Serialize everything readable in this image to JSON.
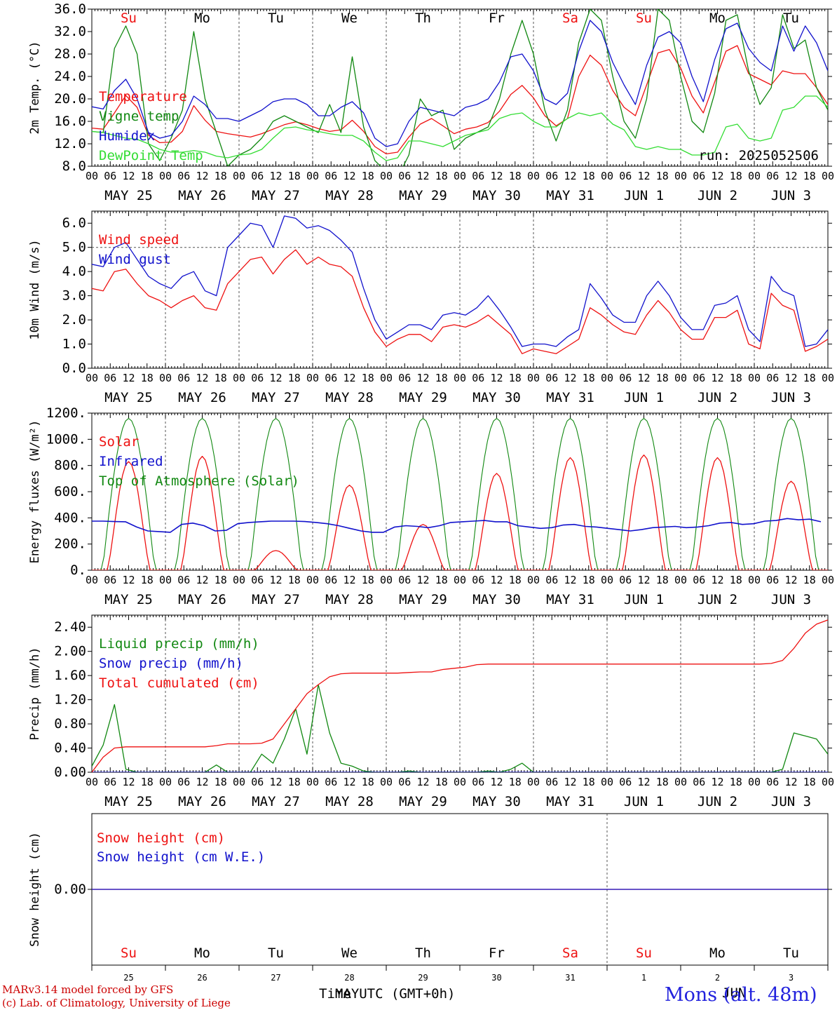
{
  "colors": {
    "red": "#ee1111",
    "green": "#118811",
    "blue": "#1111cc",
    "lime": "#33dd33",
    "grid": "#555555"
  },
  "days": {
    "weekday": [
      "Su",
      "Mo",
      "Tu",
      "We",
      "Th",
      "Fr",
      "Sa",
      "Su",
      "Mo",
      "Tu"
    ],
    "weekend_color": [
      "red",
      "black",
      "black",
      "black",
      "black",
      "black",
      "red",
      "red",
      "black",
      "black"
    ],
    "date_labels": [
      "MAY 25",
      "MAY 26",
      "MAY 27",
      "MAY 28",
      "MAY 29",
      "MAY 30",
      "MAY 31",
      "JUN  1",
      "JUN  2",
      "JUN  3"
    ],
    "bottom_numbers": [
      "25",
      "26",
      "27",
      "28",
      "29",
      "30",
      "31",
      "1",
      "2",
      "3"
    ],
    "hour_ticks": [
      "00",
      "06",
      "12",
      "18"
    ],
    "final_tick": "00"
  },
  "footer": {
    "model": "MARv3.14 model forced by GFS",
    "lab": "(c) Lab. of Climatology, University of Liege",
    "xlabel": "Time UTC (GMT+0h)",
    "overlap_month": "MAY",
    "overlap_month2": "JUN",
    "station": "Mons (alt. 48m)"
  },
  "chart_data": [
    {
      "type": "line",
      "ylabel": "2m Temp. (°C)",
      "ylim": [
        8,
        36
      ],
      "yticks": [
        "8.0",
        "12.0",
        "16.0",
        "20.0",
        "24.0",
        "28.0",
        "32.0",
        "36.0"
      ],
      "ytick_values": [
        8,
        12,
        16,
        20,
        24,
        28,
        32,
        36
      ],
      "annotation": "run: 2025052506",
      "hours_step": 6,
      "series": [
        {
          "name": "Temperature",
          "color": "red",
          "values": [
            14.8,
            14.6,
            17.5,
            20.6,
            18.5,
            13.5,
            12.2,
            12.3,
            14.2,
            18.8,
            16.2,
            14.2,
            13.8,
            13.5,
            13.2,
            13.8,
            14.6,
            15.4,
            15.9,
            15.4,
            14.7,
            14.2,
            14.5,
            16.2,
            14.2,
            11.5,
            10.2,
            10.5,
            13.2,
            15.5,
            16.5,
            15.2,
            13.8,
            14.6,
            15.0,
            15.8,
            17.8,
            20.8,
            22.4,
            20.2,
            17.0,
            15.2,
            16.5,
            24.0,
            27.8,
            26.0,
            21.5,
            18.5,
            17.0,
            22.5,
            28.2,
            28.8,
            25.5,
            20.5,
            17.5,
            23.0,
            28.5,
            29.5,
            24.5,
            23.5,
            22.5,
            25.0,
            24.5,
            24.5,
            22.0,
            19.0
          ]
        },
        {
          "name": "Vigne temp",
          "color": "green",
          "values": [
            14.2,
            14.0,
            29.0,
            33.0,
            28.0,
            12.0,
            9.0,
            13.0,
            18.0,
            32.0,
            20.0,
            14.0,
            8.0,
            10.0,
            11.0,
            13.0,
            16.0,
            17.0,
            16.0,
            15.0,
            14.0,
            19.0,
            14.0,
            27.5,
            15.0,
            9.0,
            7.0,
            6.0,
            10.0,
            20.0,
            17.0,
            18.0,
            11.0,
            13.0,
            14.0,
            15.0,
            20.0,
            28.0,
            34.0,
            28.0,
            18.0,
            12.5,
            18.0,
            30.0,
            36.0,
            34.0,
            24.0,
            16.0,
            13.0,
            20.0,
            36.0,
            34.0,
            24.0,
            16.0,
            14.0,
            21.0,
            34.0,
            35.0,
            25.0,
            19.0,
            22.0,
            35.0,
            29.0,
            30.5,
            22.0,
            18.0
          ]
        },
        {
          "name": "Humidex",
          "color": "blue",
          "values": [
            18.6,
            18.2,
            21.5,
            23.5,
            20.0,
            14.0,
            13.0,
            13.5,
            16.0,
            20.5,
            19.0,
            16.5,
            16.5,
            16.0,
            17.0,
            18.0,
            19.5,
            20.0,
            20.0,
            19.0,
            17.0,
            17.0,
            18.5,
            19.5,
            17.5,
            13.0,
            11.5,
            12.0,
            16.0,
            18.5,
            18.0,
            17.5,
            17.0,
            18.5,
            19.0,
            20.0,
            23.0,
            27.5,
            28.0,
            25.0,
            20.0,
            19.0,
            21.0,
            28.5,
            34.0,
            32.0,
            26.5,
            22.5,
            19.0,
            26.0,
            31.0,
            32.0,
            30.0,
            24.0,
            19.5,
            27.0,
            32.5,
            33.5,
            29.0,
            26.5,
            25.0,
            33.0,
            28.5,
            33.0,
            30.0,
            25.0
          ]
        },
        {
          "name": "DewPoint Temp",
          "color": "lime",
          "values": [
            14.2,
            14.0,
            13.5,
            13.0,
            12.8,
            12.0,
            11.0,
            10.5,
            10.5,
            10.8,
            10.5,
            9.8,
            9.5,
            10.0,
            10.2,
            11.0,
            13.0,
            14.8,
            15.0,
            14.5,
            14.2,
            13.8,
            13.5,
            13.5,
            12.5,
            10.5,
            9.0,
            9.5,
            12.5,
            12.5,
            12.0,
            11.5,
            12.5,
            13.5,
            14.0,
            14.5,
            16.5,
            17.2,
            17.5,
            16.0,
            15.0,
            15.0,
            16.5,
            17.5,
            17.0,
            17.5,
            15.5,
            14.5,
            11.5,
            11.0,
            11.5,
            11.0,
            11.0,
            10.0,
            10.0,
            10.5,
            15.0,
            15.5,
            13.0,
            12.5,
            13.0,
            18.0,
            18.5,
            20.5,
            20.5,
            18.5
          ]
        }
      ]
    },
    {
      "type": "line",
      "ylabel": "10m Wind (m/s)",
      "ylim": [
        0,
        6.5
      ],
      "yticks": [
        "0.0",
        "1.0",
        "2.0",
        "3.0",
        "4.0",
        "5.0",
        "6.0"
      ],
      "ytick_values": [
        0,
        1,
        2,
        3,
        4,
        5,
        6
      ],
      "reference_line": 5.0,
      "hours_step": 6,
      "series": [
        {
          "name": "Wind speed",
          "color": "red",
          "values": [
            3.3,
            3.2,
            4.0,
            4.1,
            3.5,
            3.0,
            2.8,
            2.5,
            2.8,
            3.0,
            2.5,
            2.4,
            3.5,
            4.0,
            4.5,
            4.6,
            3.9,
            4.5,
            4.9,
            4.3,
            4.6,
            4.3,
            4.2,
            3.8,
            2.5,
            1.5,
            0.9,
            1.2,
            1.4,
            1.4,
            1.1,
            1.7,
            1.8,
            1.7,
            1.9,
            2.2,
            1.8,
            1.4,
            0.6,
            0.8,
            0.7,
            0.6,
            0.9,
            1.2,
            2.5,
            2.2,
            1.8,
            1.5,
            1.4,
            2.2,
            2.8,
            2.3,
            1.6,
            1.2,
            1.2,
            2.1,
            2.1,
            2.4,
            1.0,
            0.8,
            3.1,
            2.6,
            2.4,
            0.7,
            0.9,
            1.2
          ]
        },
        {
          "name": "Wind gust",
          "color": "blue",
          "values": [
            4.3,
            4.2,
            5.0,
            5.2,
            4.5,
            3.8,
            3.5,
            3.3,
            3.8,
            4.0,
            3.2,
            3.0,
            5.0,
            5.5,
            6.0,
            5.9,
            5.0,
            6.3,
            6.2,
            5.8,
            5.9,
            5.7,
            5.3,
            4.8,
            3.3,
            2.0,
            1.2,
            1.5,
            1.8,
            1.8,
            1.6,
            2.2,
            2.3,
            2.2,
            2.5,
            3.0,
            2.4,
            1.7,
            0.9,
            1.0,
            1.0,
            0.9,
            1.3,
            1.6,
            3.5,
            2.9,
            2.2,
            1.9,
            1.9,
            3.0,
            3.6,
            3.0,
            2.1,
            1.6,
            1.6,
            2.6,
            2.7,
            3.0,
            1.6,
            1.1,
            3.8,
            3.2,
            3.0,
            0.9,
            1.0,
            1.6
          ]
        }
      ]
    },
    {
      "type": "line",
      "ylabel": "Energy fluxes (W/m²)",
      "ylim": [
        0,
        1200
      ],
      "yticks": [
        "0.",
        "200.",
        "400.",
        "600.",
        "800.",
        "1000.",
        "1200."
      ],
      "ytick_values": [
        0,
        200,
        400,
        600,
        800,
        1000,
        1200
      ],
      "hours_step": 3,
      "toa_peak": 1160,
      "solar_peaks": [
        830,
        870,
        150,
        650,
        350,
        740,
        860,
        880,
        860,
        680
      ],
      "solar_attenuation": [
        1,
        1,
        0.18,
        0.55,
        0.4,
        0.85,
        1,
        1,
        1,
        0.75
      ],
      "series": [
        {
          "name": "Solar",
          "color": "red"
        },
        {
          "name": "Infrared",
          "color": "blue",
          "values": [
            375,
            375,
            372,
            370,
            330,
            300,
            295,
            290,
            350,
            360,
            340,
            300,
            305,
            355,
            365,
            370,
            375,
            375,
            375,
            372,
            365,
            355,
            340,
            320,
            300,
            290,
            290,
            330,
            340,
            335,
            325,
            340,
            365,
            370,
            375,
            380,
            370,
            370,
            340,
            330,
            320,
            325,
            345,
            350,
            335,
            330,
            320,
            310,
            300,
            310,
            325,
            330,
            335,
            325,
            330,
            340,
            360,
            365,
            350,
            355,
            375,
            380,
            395,
            385,
            390,
            370
          ]
        },
        {
          "name": "Top of Atmosphere (Solar)",
          "color": "green"
        }
      ]
    },
    {
      "type": "line",
      "ylabel": "Precip (mm/h)",
      "ylim": [
        0,
        2.6
      ],
      "yticks": [
        "0.00",
        "0.40",
        "0.80",
        "1.20",
        "1.60",
        "2.00",
        "2.40"
      ],
      "ytick_values": [
        0,
        0.4,
        0.8,
        1.2,
        1.6,
        2.0,
        2.4
      ],
      "hours_step": 6,
      "series": [
        {
          "name": "Liquid precip (mm/h)",
          "color": "green",
          "values": [
            0.1,
            0.45,
            1.12,
            0.05,
            0.0,
            0.0,
            0.0,
            0.0,
            0.0,
            0.0,
            0.0,
            0.12,
            0.0,
            0.0,
            0.0,
            0.3,
            0.15,
            0.55,
            1.05,
            0.3,
            1.45,
            0.65,
            0.15,
            0.1,
            0.02,
            0.0,
            0.0,
            0.0,
            0.02,
            0.0,
            0.0,
            0.0,
            0.0,
            0.0,
            0.0,
            0.02,
            0.0,
            0.05,
            0.15,
            0.0,
            0.0,
            0.0,
            0.0,
            0.0,
            0.0,
            0.0,
            0.0,
            0.0,
            0.0,
            0.0,
            0.0,
            0.0,
            0.0,
            0.0,
            0.0,
            0.0,
            0.0,
            0.0,
            0.0,
            0.0,
            0.0,
            0.05,
            0.65,
            0.6,
            0.55,
            0.3
          ]
        },
        {
          "name": "Snow precip (mm/h)",
          "color": "blue",
          "values": [
            0,
            0,
            0,
            0,
            0,
            0,
            0,
            0,
            0,
            0,
            0,
            0,
            0,
            0,
            0,
            0,
            0,
            0,
            0,
            0,
            0,
            0,
            0,
            0,
            0,
            0,
            0,
            0,
            0,
            0,
            0,
            0,
            0,
            0,
            0,
            0,
            0,
            0,
            0,
            0,
            0,
            0,
            0,
            0,
            0,
            0,
            0,
            0,
            0,
            0,
            0,
            0,
            0,
            0,
            0,
            0,
            0,
            0,
            0,
            0,
            0,
            0,
            0,
            0,
            0,
            0
          ]
        },
        {
          "name": "Total cumulated (cm)",
          "color": "red",
          "values": [
            0.0,
            0.25,
            0.4,
            0.42,
            0.42,
            0.42,
            0.42,
            0.42,
            0.42,
            0.42,
            0.42,
            0.44,
            0.47,
            0.47,
            0.47,
            0.48,
            0.55,
            0.8,
            1.05,
            1.3,
            1.45,
            1.58,
            1.63,
            1.64,
            1.64,
            1.64,
            1.64,
            1.64,
            1.65,
            1.66,
            1.66,
            1.7,
            1.72,
            1.74,
            1.78,
            1.79,
            1.79,
            1.79,
            1.79,
            1.79,
            1.79,
            1.79,
            1.79,
            1.79,
            1.79,
            1.79,
            1.79,
            1.79,
            1.79,
            1.79,
            1.79,
            1.79,
            1.79,
            1.79,
            1.79,
            1.79,
            1.79,
            1.79,
            1.79,
            1.79,
            1.8,
            1.85,
            2.05,
            2.3,
            2.45,
            2.52
          ]
        }
      ]
    },
    {
      "type": "line",
      "ylabel": "Snow height (cm)",
      "ylim": [
        -1,
        1
      ],
      "yticks": [
        "0.00"
      ],
      "ytick_values": [
        0
      ],
      "series": [
        {
          "name": "Snow height (cm)",
          "color": "red",
          "values": [
            0,
            0
          ]
        },
        {
          "name": "Snow height (cm W.E.)",
          "color": "blue",
          "values": [
            0,
            0
          ]
        }
      ]
    }
  ]
}
